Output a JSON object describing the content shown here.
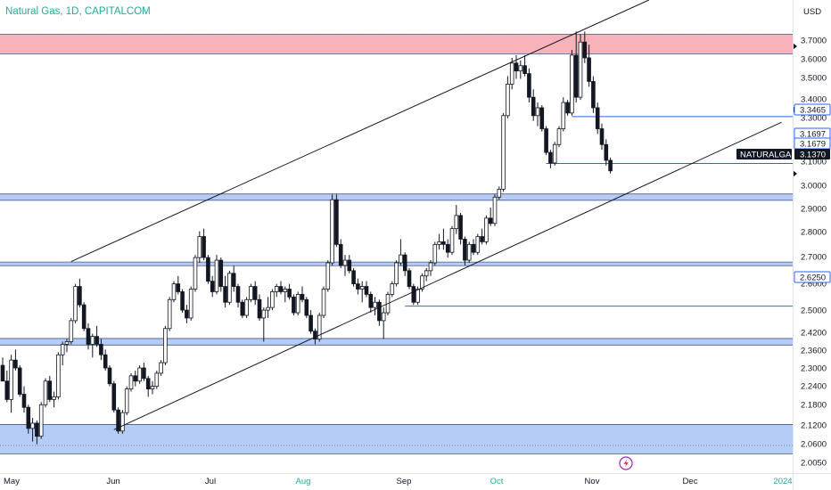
{
  "chart_data": {
    "type": "candlestick",
    "title": "Natural Gas, 1D, CAPITALCOM",
    "currency": "USD",
    "symbol": "NATURALGAS",
    "last_price": 3.137,
    "yticks": [
      "3.7000",
      "3.6000",
      "3.5000",
      "3.4000",
      "3.3000",
      "3.1000",
      "3.0000",
      "2.9000",
      "2.8000",
      "2.7000",
      "2.6000",
      "2.5000",
      "2.4200",
      "2.3600",
      "2.3000",
      "2.2400",
      "2.1800",
      "2.1200",
      "2.0600",
      "2.0050"
    ],
    "xticks": [
      {
        "label": "May",
        "accent": false
      },
      {
        "label": "Jun",
        "accent": false
      },
      {
        "label": "Jul",
        "accent": false
      },
      {
        "label": "Aug",
        "accent": true
      },
      {
        "label": "Sep",
        "accent": false
      },
      {
        "label": "Oct",
        "accent": true
      },
      {
        "label": "Nov",
        "accent": false
      },
      {
        "label": "Dec",
        "accent": false
      },
      {
        "label": "2024",
        "accent": true
      }
    ],
    "price_tags": [
      {
        "value": "3.3465",
        "style": "outline"
      },
      {
        "value": "3.1697",
        "style": "outline"
      },
      {
        "value": "3.1679",
        "style": "outline"
      },
      {
        "value": "2.6250",
        "style": "outline"
      }
    ],
    "last_tag": {
      "symbol": "NATURALGAS",
      "value": "3.1370"
    },
    "zones": [
      {
        "name": "resistance-zone",
        "y1": 3.585,
        "y2": 3.66,
        "color": "#f7a5ad"
      },
      {
        "name": "support-zone-1",
        "y1": 3.028,
        "y2": 3.052,
        "color": "#a8c3f5"
      },
      {
        "name": "support-zone-2",
        "y1": 2.779,
        "y2": 2.793,
        "color": "#a8c3f5"
      },
      {
        "name": "support-zone-3",
        "y1": 2.477,
        "y2": 2.502,
        "color": "#a8c3f5"
      },
      {
        "name": "support-zone-4",
        "y1": 2.063,
        "y2": 2.175,
        "color": "#a8c3f5"
      }
    ],
    "candles": [
      [
        2.4,
        2.43,
        2.35,
        2.34
      ],
      [
        2.34,
        2.38,
        2.26,
        2.27
      ],
      [
        2.27,
        2.44,
        2.22,
        2.42
      ],
      [
        2.42,
        2.46,
        2.38,
        2.39
      ],
      [
        2.39,
        2.4,
        2.28,
        2.29
      ],
      [
        2.29,
        2.32,
        2.22,
        2.24
      ],
      [
        2.24,
        2.25,
        2.14,
        2.16
      ],
      [
        2.16,
        2.2,
        2.11,
        2.18
      ],
      [
        2.18,
        2.19,
        2.1,
        2.13
      ],
      [
        2.13,
        2.26,
        2.12,
        2.25
      ],
      [
        2.25,
        2.35,
        2.24,
        2.34
      ],
      [
        2.34,
        2.36,
        2.26,
        2.27
      ],
      [
        2.27,
        2.3,
        2.24,
        2.28
      ],
      [
        2.28,
        2.45,
        2.27,
        2.44
      ],
      [
        2.44,
        2.49,
        2.4,
        2.48
      ],
      [
        2.48,
        2.5,
        2.45,
        2.49
      ],
      [
        2.49,
        2.58,
        2.48,
        2.57
      ],
      [
        2.57,
        2.71,
        2.56,
        2.7
      ],
      [
        2.7,
        2.73,
        2.62,
        2.63
      ],
      [
        2.63,
        2.64,
        2.53,
        2.54
      ],
      [
        2.54,
        2.56,
        2.46,
        2.48
      ],
      [
        2.48,
        2.52,
        2.43,
        2.51
      ],
      [
        2.51,
        2.55,
        2.47,
        2.48
      ],
      [
        2.48,
        2.5,
        2.42,
        2.44
      ],
      [
        2.44,
        2.46,
        2.38,
        2.39
      ],
      [
        2.39,
        2.4,
        2.32,
        2.33
      ],
      [
        2.33,
        2.34,
        2.22,
        2.23
      ],
      [
        2.23,
        2.24,
        2.14,
        2.15
      ],
      [
        2.15,
        2.23,
        2.14,
        2.22
      ],
      [
        2.22,
        2.32,
        2.21,
        2.31
      ],
      [
        2.31,
        2.37,
        2.3,
        2.36
      ],
      [
        2.36,
        2.38,
        2.32,
        2.34
      ],
      [
        2.34,
        2.4,
        2.33,
        2.39
      ],
      [
        2.39,
        2.41,
        2.34,
        2.35
      ],
      [
        2.35,
        2.36,
        2.28,
        2.31
      ],
      [
        2.31,
        2.34,
        2.29,
        2.32
      ],
      [
        2.32,
        2.38,
        2.31,
        2.37
      ],
      [
        2.37,
        2.42,
        2.36,
        2.41
      ],
      [
        2.41,
        2.55,
        2.4,
        2.54
      ],
      [
        2.54,
        2.66,
        2.53,
        2.65
      ],
      [
        2.65,
        2.72,
        2.64,
        2.71
      ],
      [
        2.71,
        2.74,
        2.67,
        2.68
      ],
      [
        2.68,
        2.69,
        2.6,
        2.61
      ],
      [
        2.61,
        2.63,
        2.56,
        2.58
      ],
      [
        2.58,
        2.7,
        2.57,
        2.69
      ],
      [
        2.69,
        2.82,
        2.68,
        2.81
      ],
      [
        2.81,
        2.91,
        2.79,
        2.89
      ],
      [
        2.89,
        2.92,
        2.8,
        2.81
      ],
      [
        2.81,
        2.82,
        2.71,
        2.72
      ],
      [
        2.72,
        2.74,
        2.66,
        2.68
      ],
      [
        2.68,
        2.82,
        2.67,
        2.8
      ],
      [
        2.8,
        2.81,
        2.68,
        2.7
      ],
      [
        2.7,
        2.74,
        2.62,
        2.64
      ],
      [
        2.64,
        2.76,
        2.63,
        2.75
      ],
      [
        2.75,
        2.78,
        2.68,
        2.7
      ],
      [
        2.7,
        2.71,
        2.62,
        2.64
      ],
      [
        2.64,
        2.65,
        2.58,
        2.59
      ],
      [
        2.59,
        2.66,
        2.58,
        2.65
      ],
      [
        2.65,
        2.71,
        2.64,
        2.7
      ],
      [
        2.7,
        2.72,
        2.63,
        2.65
      ],
      [
        2.65,
        2.67,
        2.57,
        2.58
      ],
      [
        2.58,
        2.62,
        2.49,
        2.61
      ],
      [
        2.61,
        2.66,
        2.58,
        2.62
      ],
      [
        2.62,
        2.69,
        2.61,
        2.68
      ],
      [
        2.68,
        2.71,
        2.66,
        2.7
      ],
      [
        2.7,
        2.72,
        2.67,
        2.68
      ],
      [
        2.68,
        2.7,
        2.64,
        2.69
      ],
      [
        2.69,
        2.71,
        2.65,
        2.66
      ],
      [
        2.66,
        2.67,
        2.59,
        2.6
      ],
      [
        2.6,
        2.68,
        2.59,
        2.67
      ],
      [
        2.67,
        2.7,
        2.64,
        2.65
      ],
      [
        2.65,
        2.66,
        2.58,
        2.59
      ],
      [
        2.59,
        2.61,
        2.52,
        2.53
      ],
      [
        2.53,
        2.54,
        2.48,
        2.5
      ],
      [
        2.5,
        2.6,
        2.49,
        2.59
      ],
      [
        2.59,
        2.7,
        2.58,
        2.69
      ],
      [
        2.69,
        2.8,
        2.68,
        2.79
      ],
      [
        2.79,
        3.05,
        2.78,
        3.03
      ],
      [
        3.03,
        3.05,
        2.85,
        2.86
      ],
      [
        2.86,
        2.88,
        2.77,
        2.78
      ],
      [
        2.78,
        2.82,
        2.74,
        2.8
      ],
      [
        2.8,
        2.82,
        2.75,
        2.76
      ],
      [
        2.76,
        2.77,
        2.7,
        2.71
      ],
      [
        2.71,
        2.73,
        2.67,
        2.69
      ],
      [
        2.69,
        2.72,
        2.64,
        2.7
      ],
      [
        2.7,
        2.72,
        2.66,
        2.67
      ],
      [
        2.67,
        2.68,
        2.6,
        2.62
      ],
      [
        2.62,
        2.66,
        2.59,
        2.64
      ],
      [
        2.64,
        2.65,
        2.55,
        2.57
      ],
      [
        2.57,
        2.62,
        2.5,
        2.6
      ],
      [
        2.6,
        2.68,
        2.59,
        2.67
      ],
      [
        2.67,
        2.72,
        2.66,
        2.71
      ],
      [
        2.71,
        2.8,
        2.7,
        2.79
      ],
      [
        2.79,
        2.88,
        2.78,
        2.82
      ],
      [
        2.82,
        2.83,
        2.74,
        2.76
      ],
      [
        2.76,
        2.77,
        2.69,
        2.7
      ],
      [
        2.7,
        2.71,
        2.63,
        2.64
      ],
      [
        2.64,
        2.7,
        2.63,
        2.69
      ],
      [
        2.69,
        2.75,
        2.68,
        2.74
      ],
      [
        2.74,
        2.77,
        2.72,
        2.76
      ],
      [
        2.76,
        2.8,
        2.74,
        2.79
      ],
      [
        2.79,
        2.87,
        2.78,
        2.86
      ],
      [
        2.86,
        2.9,
        2.84,
        2.87
      ],
      [
        2.87,
        2.92,
        2.84,
        2.86
      ],
      [
        2.86,
        2.88,
        2.81,
        2.83
      ],
      [
        2.83,
        2.93,
        2.82,
        2.92
      ],
      [
        2.92,
        3.01,
        2.9,
        2.97
      ],
      [
        2.97,
        2.98,
        2.86,
        2.88
      ],
      [
        2.88,
        2.89,
        2.78,
        2.8
      ],
      [
        2.8,
        2.87,
        2.79,
        2.86
      ],
      [
        2.86,
        2.88,
        2.82,
        2.83
      ],
      [
        2.83,
        2.9,
        2.82,
        2.89
      ],
      [
        2.89,
        2.92,
        2.86,
        2.87
      ],
      [
        2.87,
        2.97,
        2.86,
        2.96
      ],
      [
        2.96,
        3.0,
        2.93,
        2.94
      ],
      [
        2.94,
        3.05,
        2.93,
        3.04
      ],
      [
        3.04,
        3.08,
        3.03,
        3.07
      ],
      [
        3.07,
        3.36,
        3.06,
        3.35
      ],
      [
        3.35,
        3.5,
        3.34,
        3.47
      ],
      [
        3.47,
        3.57,
        3.45,
        3.55
      ],
      [
        3.55,
        3.58,
        3.49,
        3.52
      ],
      [
        3.52,
        3.56,
        3.49,
        3.54
      ],
      [
        3.54,
        3.58,
        3.5,
        3.51
      ],
      [
        3.51,
        3.53,
        3.4,
        3.42
      ],
      [
        3.42,
        3.45,
        3.33,
        3.35
      ],
      [
        3.35,
        3.4,
        3.31,
        3.38
      ],
      [
        3.38,
        3.39,
        3.29,
        3.3
      ],
      [
        3.3,
        3.31,
        3.2,
        3.21
      ],
      [
        3.21,
        3.22,
        3.15,
        3.17
      ],
      [
        3.17,
        3.25,
        3.16,
        3.24
      ],
      [
        3.24,
        3.31,
        3.23,
        3.3
      ],
      [
        3.3,
        3.42,
        3.29,
        3.4
      ],
      [
        3.4,
        3.41,
        3.35,
        3.36
      ],
      [
        3.36,
        3.6,
        3.35,
        3.58
      ],
      [
        3.58,
        3.67,
        3.4,
        3.42
      ],
      [
        3.42,
        3.66,
        3.41,
        3.63
      ],
      [
        3.63,
        3.67,
        3.55,
        3.57
      ],
      [
        3.57,
        3.62,
        3.46,
        3.48
      ],
      [
        3.48,
        3.5,
        3.36,
        3.38
      ],
      [
        3.38,
        3.4,
        3.28,
        3.3
      ],
      [
        3.3,
        3.32,
        3.22,
        3.24
      ],
      [
        3.24,
        3.26,
        3.16,
        3.18
      ],
      [
        3.18,
        3.19,
        3.13,
        3.14
      ]
    ],
    "trendlines": [
      {
        "name": "channel-upper-line",
        "from": [
          16,
          2.795
        ],
        "to": [
          151,
          3.79
        ]
      },
      {
        "name": "channel-lower-line",
        "from": [
          26,
          2.155
        ],
        "to": [
          182,
          3.325
        ]
      }
    ],
    "hlines": [
      {
        "name": "level-line-3.3465",
        "from_index": 133,
        "price": 3.3465,
        "color": "#2962ff"
      },
      {
        "name": "level-line-3.1679",
        "from_index": 127,
        "price": 3.1679,
        "color": "#2962ff"
      },
      {
        "name": "level-line-2.6250",
        "from_index": 94,
        "price": 2.625,
        "color": "#2962ff"
      }
    ],
    "ylim": [
      1.99,
      3.79
    ],
    "grid": false,
    "legend": "none"
  }
}
